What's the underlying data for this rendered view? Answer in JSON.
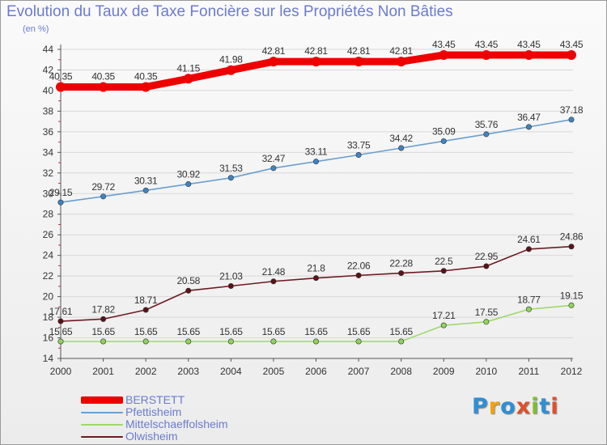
{
  "title": "Evolution du Taux de Taxe Foncière sur les Propriétés Non Bâties",
  "subtitle": "(en %)",
  "logo_text": "Proxiti",
  "logo_colors": [
    "#2e8fd6",
    "#f2a20c",
    "#2e8fd6",
    "#e0502a",
    "#7fbf2a",
    "#2e8fd6",
    "#e0502a"
  ],
  "colors": {
    "axis": "#555555",
    "grid": "#d8d8d8",
    "tick_text": "#333333",
    "label_text": "#333333"
  },
  "chart_data": {
    "type": "line",
    "title": "Evolution du Taux de Taxe Foncière sur les Propriétés Non Bâties",
    "ylabel": "(en %)",
    "xlabel": "",
    "ylim": [
      14,
      44
    ],
    "yticks": [
      14,
      16,
      18,
      20,
      22,
      24,
      26,
      28,
      30,
      32,
      34,
      36,
      38,
      40,
      42,
      44
    ],
    "grid": true,
    "legend_position": "bottom-left",
    "x": [
      "2000",
      "2001",
      "2002",
      "2003",
      "2004",
      "2005",
      "2006",
      "2007",
      "2008",
      "2009",
      "2010",
      "2011",
      "2012"
    ],
    "series": [
      {
        "name": "BERSTETT",
        "color": "#ee0000",
        "thick": true,
        "values": [
          40.35,
          40.35,
          40.35,
          41.15,
          41.98,
          42.81,
          42.81,
          42.81,
          42.81,
          43.45,
          43.45,
          43.45,
          43.45
        ],
        "labels": [
          "40.35",
          "40.35",
          "40.35",
          "41.15",
          "41.98",
          "42.81",
          "42.81",
          "42.81",
          "42.81",
          "43.45",
          "43.45",
          "43.45",
          "43.45"
        ]
      },
      {
        "name": "Pfettisheim",
        "color": "#6a9fcf",
        "marker": "#3f84c4",
        "values": [
          29.15,
          29.72,
          30.31,
          30.92,
          31.53,
          32.47,
          33.11,
          33.75,
          34.42,
          35.09,
          35.76,
          36.47,
          37.18
        ],
        "labels": [
          "29.15",
          "29.72",
          "30.31",
          "30.92",
          "31.53",
          "32.47",
          "33.11",
          "33.75",
          "34.42",
          "35.09",
          "35.76",
          "36.47",
          "37.18"
        ]
      },
      {
        "name": "Mittelschaeffolsheim",
        "color": "#9ed86a",
        "marker": "#8fd45a",
        "values": [
          15.65,
          15.65,
          15.65,
          15.65,
          15.65,
          15.65,
          15.65,
          15.65,
          15.65,
          17.21,
          17.55,
          18.77,
          19.15
        ],
        "labels": [
          "15.65",
          "15.65",
          "15.65",
          "15.65",
          "15.65",
          "15.65",
          "15.65",
          "15.65",
          "15.65",
          "17.21",
          "17.55",
          "18.77",
          "19.15"
        ]
      },
      {
        "name": "Olwisheim",
        "color": "#6e1a22",
        "marker": "#5a1218",
        "values": [
          17.61,
          17.82,
          18.71,
          20.58,
          21.03,
          21.48,
          21.8,
          22.06,
          22.28,
          22.5,
          22.95,
          24.61,
          24.86
        ],
        "labels": [
          "17.61",
          "17.82",
          "18.71",
          "20.58",
          "21.03",
          "21.48",
          "21.8",
          "22.06",
          "22.28",
          "22.5",
          "22.95",
          "24.61",
          "24.86"
        ]
      }
    ]
  }
}
